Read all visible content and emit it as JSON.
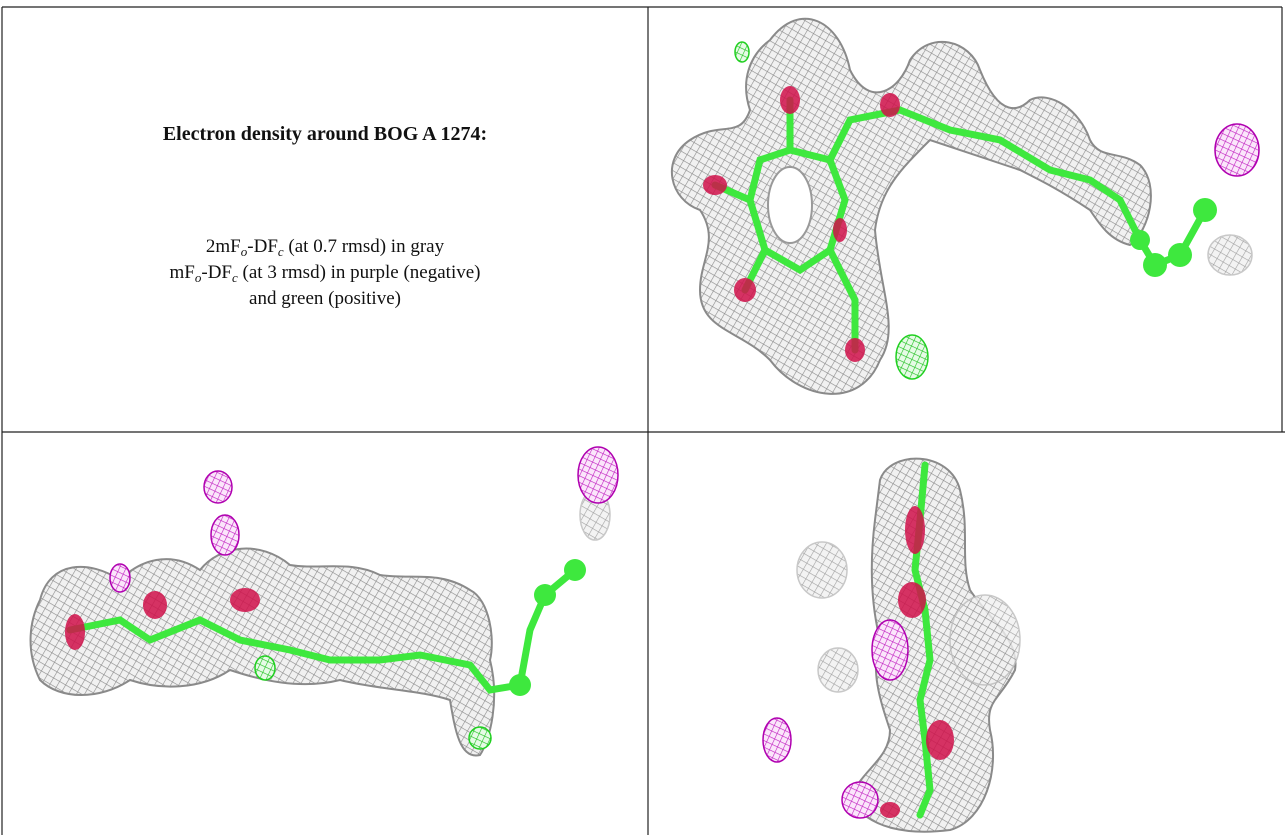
{
  "caption": {
    "title": "Electron density around BOG A 1274:",
    "lines": [
      [
        "2mF",
        "o",
        "-DF",
        "c",
        " (at 0.7 rmsd) in gray"
      ],
      [
        "mF",
        "o",
        "-DF",
        "c",
        " (at 3 rmsd) in purple (negative)"
      ],
      [
        "and green (positive)"
      ]
    ]
  }
}
